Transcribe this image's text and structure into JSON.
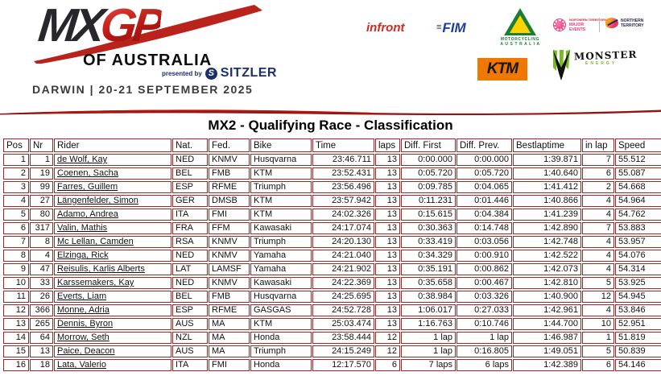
{
  "header": {
    "logo_mx": "MX",
    "logo_gp": "GP",
    "logo_subtitle": "OF AUSTRALIA",
    "presented_by": "presented by",
    "presenter": "SITZLER",
    "presenter_mark": "S",
    "event_line": "DARWIN | 20-21 SEPTEMBER 2025",
    "sponsors": {
      "infront": "infront",
      "fim": "FIM",
      "ma_line1": "MOTORCYCLING",
      "ma_line2": "A U S T R A L I A",
      "major_events_top": "NORTHERN TERRITORY",
      "major_events_line1": "MAJOR",
      "major_events_line2": "EVENTS",
      "nt_line1": "NORTHERN",
      "nt_line2": "TERRITORY",
      "ktm": "KTM",
      "monster_line1": "MONSTER",
      "monster_line2": "ENERGY"
    }
  },
  "title": "MX2 - Qualifying Race - Classification",
  "table": {
    "columns": [
      "Pos",
      "Nr",
      "Rider",
      "Nat.",
      "Fed.",
      "Bike",
      "Time",
      "laps",
      "Diff. First",
      "Diff. Prev.",
      "Bestlaptime",
      "in lap",
      "Speed"
    ],
    "rows": [
      [
        "1",
        "1",
        "de Wolf, Kay",
        "NED",
        "KNMV",
        "Husqvarna",
        "23:46.711",
        "13",
        "0:00.000",
        "0:00.000",
        "1:39.871",
        "7",
        "55.512"
      ],
      [
        "2",
        "19",
        "Coenen, Sacha",
        "BEL",
        "FMB",
        "KTM",
        "23:52.431",
        "13",
        "0:05.720",
        "0:05.720",
        "1:40.640",
        "6",
        "55.087"
      ],
      [
        "3",
        "99",
        "Farres, Guillem",
        "ESP",
        "RFME",
        "Triumph",
        "23:56.496",
        "13",
        "0:09.785",
        "0:04.065",
        "1:41.412",
        "2",
        "54.668"
      ],
      [
        "4",
        "27",
        "Längenfelder, Simon",
        "GER",
        "DMSB",
        "KTM",
        "23:57.942",
        "13",
        "0:11.231",
        "0:01.446",
        "1:40.866",
        "4",
        "54.964"
      ],
      [
        "5",
        "80",
        "Adamo, Andrea",
        "ITA",
        "FMI",
        "KTM",
        "24:02.326",
        "13",
        "0:15.615",
        "0:04.384",
        "1:41.239",
        "4",
        "54.762"
      ],
      [
        "6",
        "317",
        "Valin, Mathis",
        "FRA",
        "FFM",
        "Kawasaki",
        "24:17.074",
        "13",
        "0:30.363",
        "0:14.748",
        "1:42.890",
        "7",
        "53.883"
      ],
      [
        "7",
        "8",
        "Mc Lellan, Camden",
        "RSA",
        "KNMV",
        "Triumph",
        "24:20.130",
        "13",
        "0:33.419",
        "0:03.056",
        "1:42.748",
        "4",
        "53.957"
      ],
      [
        "8",
        "4",
        "Elzinga, Rick",
        "NED",
        "KNMV",
        "Yamaha",
        "24:21.040",
        "13",
        "0:34.329",
        "0:00.910",
        "1:42.522",
        "4",
        "54.076"
      ],
      [
        "9",
        "47",
        "Reisulis, Karlis Alberts",
        "LAT",
        "LAMSF",
        "Yamaha",
        "24:21.902",
        "13",
        "0:35.191",
        "0:00.862",
        "1:42.073",
        "4",
        "54.314"
      ],
      [
        "10",
        "33",
        "Karssemakers, Kay",
        "NED",
        "KNMV",
        "Kawasaki",
        "24:22.369",
        "13",
        "0:35.658",
        "0:00.467",
        "1:42.810",
        "5",
        "53.925"
      ],
      [
        "11",
        "26",
        "Everts, Liam",
        "BEL",
        "FMB",
        "Husqvarna",
        "24:25.695",
        "13",
        "0:38.984",
        "0:03.326",
        "1:40.900",
        "12",
        "54.945"
      ],
      [
        "12",
        "366",
        "Monne, Adria",
        "ESP",
        "RFME",
        "GASGAS",
        "24:52.728",
        "13",
        "1:06.017",
        "0:27.033",
        "1:42.961",
        "4",
        "53.846"
      ],
      [
        "13",
        "265",
        "Dennis, Byron",
        "AUS",
        "MA",
        "KTM",
        "25:03.474",
        "13",
        "1:16.763",
        "0:10.746",
        "1:44.700",
        "10",
        "52.951"
      ],
      [
        "14",
        "64",
        "Morrow, Seth",
        "NZL",
        "MA",
        "Honda",
        "23:58.444",
        "12",
        "1 lap",
        "1 lap",
        "1:46.987",
        "1",
        "51.819"
      ],
      [
        "15",
        "13",
        "Paice, Deacon",
        "AUS",
        "MA",
        "Triumph",
        "24:15.249",
        "12",
        "1 lap",
        "0:16.805",
        "1:49.051",
        "5",
        "50.839"
      ],
      [
        "16",
        "18",
        "Lata, Valerio",
        "ITA",
        "FMI",
        "Honda",
        "12:17.570",
        "6",
        "7 laps",
        "6 laps",
        "1:42.389",
        "6",
        "54.146"
      ]
    ]
  },
  "colors": {
    "table_border": "#9a2a26",
    "stripe_red": "#a01712",
    "logo_red": "#c6201e",
    "ktm_orange": "#f07800",
    "monster_green": "#76bc21",
    "infront_red": "#d5281e",
    "fim_blue": "#1d3ea0",
    "ma_green": "#1e7d34",
    "sitzler_navy": "#1b2f6e"
  }
}
